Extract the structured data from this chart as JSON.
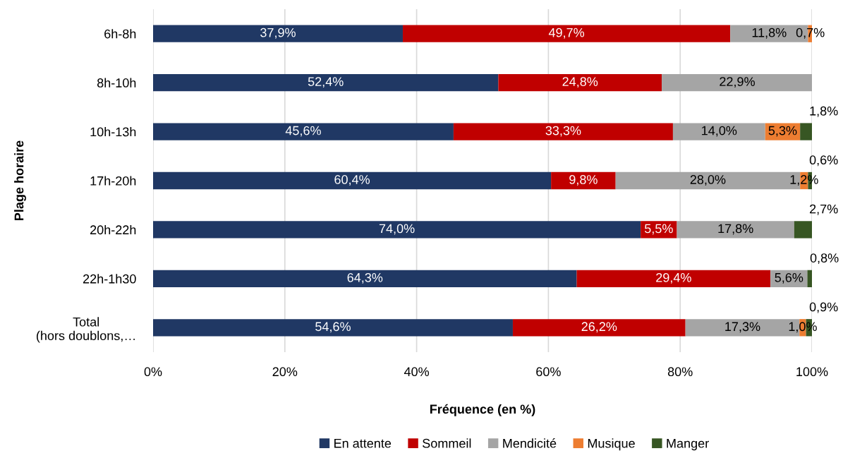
{
  "chart_data": {
    "type": "bar",
    "orientation": "horizontal",
    "stacked": true,
    "categories": [
      "6h-8h",
      "8h-10h",
      "10h-13h",
      "17h-20h",
      "20h-22h",
      "22h-1h30",
      "Total\n(hors doublons,…"
    ],
    "xlabel": "Fréquence (en %)",
    "ylabel": "Plage horaire",
    "xlim": [
      0,
      100
    ],
    "xticks": [
      {
        "value": 0,
        "label": "0%"
      },
      {
        "value": 20,
        "label": "20%"
      },
      {
        "value": 40,
        "label": "40%"
      },
      {
        "value": 60,
        "label": "60%"
      },
      {
        "value": 80,
        "label": "80%"
      },
      {
        "value": 100,
        "label": "100%"
      }
    ],
    "grid": "x",
    "legend": "bottom",
    "series": [
      {
        "name": "En attente",
        "color": "#203864",
        "values": [
          37.9,
          52.4,
          45.6,
          60.4,
          74.0,
          64.3,
          54.6
        ],
        "value_labels": [
          "37,9%",
          "52,4%",
          "45,6%",
          "60,4%",
          "74,0%",
          "64,3%",
          "54,6%"
        ]
      },
      {
        "name": "Sommeil",
        "color": "#c00000",
        "values": [
          49.7,
          24.8,
          33.3,
          9.8,
          5.5,
          29.4,
          26.2
        ],
        "value_labels": [
          "49,7%",
          "24,8%",
          "33,3%",
          "9,8%",
          "5,5%",
          "29,4%",
          "26,2%"
        ]
      },
      {
        "name": "Mendicité",
        "color": "#a5a5a5",
        "values": [
          11.8,
          22.9,
          14.0,
          28.0,
          17.8,
          5.6,
          17.3
        ],
        "value_labels": [
          "11,8%",
          "22,9%",
          "14,0%",
          "28,0%",
          "17,8%",
          "5,6%",
          "17,3%"
        ]
      },
      {
        "name": "Musique",
        "color": "#ed7d31",
        "values": [
          0.7,
          null,
          5.3,
          1.2,
          null,
          null,
          1.0
        ],
        "value_labels": [
          "0,7%",
          null,
          "5,3%",
          "1,2%",
          null,
          null,
          "1,0%"
        ]
      },
      {
        "name": "Manger",
        "color": "#375623",
        "values": [
          null,
          null,
          1.8,
          0.6,
          2.7,
          0.8,
          0.9
        ],
        "value_labels": [
          null,
          null,
          "1,8%",
          "0,6%",
          "2,7%",
          "0,8%",
          "0,9%"
        ]
      }
    ]
  }
}
